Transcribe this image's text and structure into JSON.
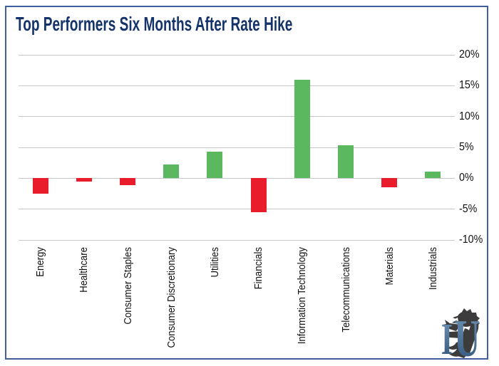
{
  "header": {
    "title": "Top Performers Six Months After Rate Hike"
  },
  "chart_data": {
    "type": "bar",
    "title": "Top Performers Six Months After Rate Hike",
    "categories": [
      "Energy",
      "Healthcare",
      "Consumer Staples",
      "Consumer Discretionary",
      "Utilities",
      "Financials",
      "Information Technology",
      "Telecommunications",
      "Materials",
      "Industrials"
    ],
    "values": [
      -2.5,
      -0.5,
      -1.1,
      2.2,
      4.3,
      -5.5,
      16.0,
      5.4,
      -1.5,
      1.1
    ],
    "xlabel": "",
    "ylabel": "",
    "y_ticks": [
      "20%",
      "15%",
      "10%",
      "5%",
      "0%",
      "-5%",
      "-10%"
    ],
    "ylim": [
      -10,
      20
    ],
    "grid": true,
    "legend": "none",
    "bar_colors": {
      "positive": "#5cb85f",
      "negative": "#e91c2b"
    }
  },
  "logo": {
    "letter_i": "I",
    "letter_u": "U",
    "monogram": "IU"
  },
  "colors": {
    "title_text": "#14336b",
    "frame_border": "#3f5f9f",
    "gridline": "#c7c7c7",
    "axis_text": "#111111",
    "logo_blue_light": "#7296b7",
    "logo_blue_dark": "#2e5278",
    "logo_gray": "#3c3c3c"
  }
}
